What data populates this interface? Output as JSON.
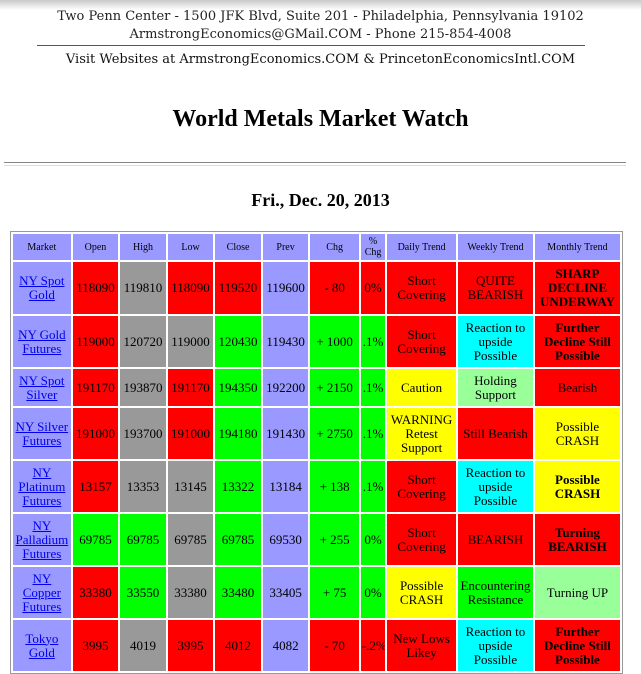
{
  "header": {
    "address": "Two Penn Center - 1500 JFK Blvd, Suite 201 - Philadelphia, Pennsylvania 19102",
    "contact": "ArmstrongEconomics@GMail.COM - Phone 215-854-4008",
    "visit": "Visit Websites at ArmstrongEconomics.COM & PrincetonEconomicsIntl.COM"
  },
  "title": "World Metals Market Watch",
  "date": "Fri., Dec. 20, 2013",
  "columns": [
    "Market",
    "Open",
    "High",
    "Low",
    "Close",
    "Prev",
    "Chg",
    "% Chg",
    "Daily Trend",
    "Weekly Trend",
    "Monthly Trend"
  ],
  "colors": {
    "red": "#ff0000",
    "green": "#00ff00",
    "gray": "#999999",
    "blue": "#9999ff",
    "cyan": "#00ffff",
    "yellow": "#ffff00",
    "lightgreen": "#99ff99"
  },
  "rows": [
    {
      "market": "NY Spot Gold",
      "open": "118090",
      "high": "119810",
      "low": "118090",
      "close": "119520",
      "prev": "119600",
      "chg": "- 80",
      "pct": "0%",
      "daily": "Short Covering",
      "weekly": "QUITE BEARISH",
      "monthly": "SHARP DECLINE UNDERWAY"
    },
    {
      "market": "NY Gold Futures",
      "open": "119000",
      "high": "120720",
      "low": "119000",
      "close": "120430",
      "prev": "119430",
      "chg": "+ 1000",
      "pct": ".1%",
      "daily": "Short Covering",
      "weekly": "Reaction to upside Possible",
      "monthly": "Further Decline Still Possible"
    },
    {
      "market": "NY Spot Silver",
      "open": "191170",
      "high": "193870",
      "low": "191170",
      "close": "194350",
      "prev": "192200",
      "chg": "+ 2150",
      "pct": ".1%",
      "daily": "Caution",
      "weekly": "Holding Support",
      "monthly": "Bearish"
    },
    {
      "market": "NY Silver Futures",
      "open": "191000",
      "high": "193700",
      "low": "191000",
      "close": "194180",
      "prev": "191430",
      "chg": "+ 2750",
      "pct": ".1%",
      "daily": "WARNING Retest Support",
      "weekly": "Still Bearish",
      "monthly": "Possible CRASH"
    },
    {
      "market": "NY Platinum Futures",
      "open": "13157",
      "high": "13353",
      "low": "13145",
      "close": "13322",
      "prev": "13184",
      "chg": "+ 138",
      "pct": ".1%",
      "daily": "Short Covering",
      "weekly": "Reaction to upside Possible",
      "monthly": "Possible CRASH"
    },
    {
      "market": "NY Palladium Futures",
      "open": "69785",
      "high": "69785",
      "low": "69785",
      "close": "69785",
      "prev": "69530",
      "chg": "+ 255",
      "pct": "0%",
      "daily": "Short Covering",
      "weekly": "BEARISH",
      "monthly": "Turning BEARISH"
    },
    {
      "market": "NY Copper Futures",
      "open": "33380",
      "high": "33550",
      "low": "33380",
      "close": "33480",
      "prev": "33405",
      "chg": "+ 75",
      "pct": "0%",
      "daily": "Possible CRASH",
      "weekly": "Encountering Resistance",
      "monthly": "Turning UP"
    },
    {
      "market": "Tokyo Gold",
      "open": "3995",
      "high": "4019",
      "low": "3995",
      "close": "4012",
      "prev": "4082",
      "chg": "- 70",
      "pct": "-.2%",
      "daily": "New Lows Likey",
      "weekly": "Reaction to upside Possible",
      "monthly": "Further Decline Still Possible"
    }
  ]
}
